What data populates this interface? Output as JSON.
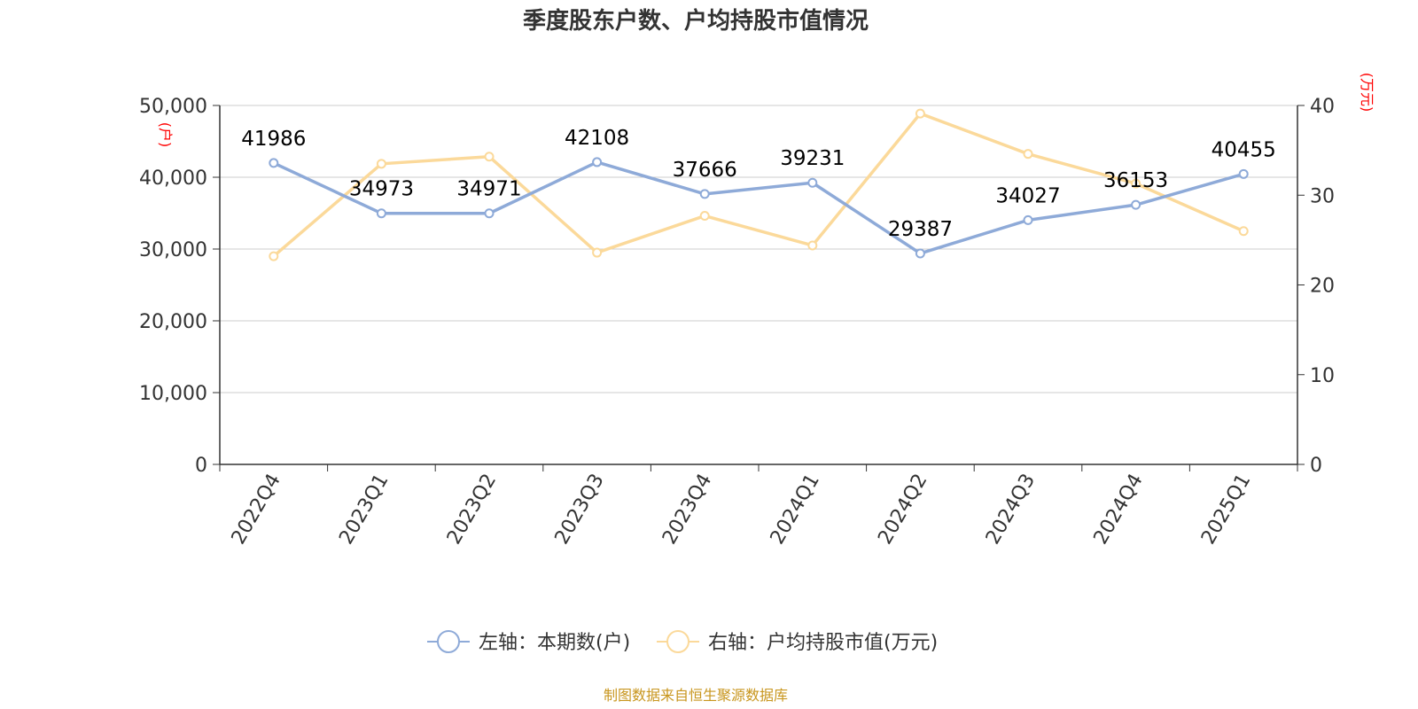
{
  "chart_data": {
    "type": "line",
    "title": "季度股东户数、户均持股市值情况",
    "categories": [
      "2022Q4",
      "2023Q1",
      "2023Q2",
      "2023Q3",
      "2023Q4",
      "2024Q1",
      "2024Q2",
      "2024Q3",
      "2024Q4",
      "2025Q1"
    ],
    "left_axis": {
      "unit": "(户)",
      "ylim": [
        0,
        50000
      ],
      "ticks": [
        "0",
        "10,000",
        "20,000",
        "30,000",
        "40,000",
        "50,000"
      ],
      "tick_values": [
        0,
        10000,
        20000,
        30000,
        40000,
        50000
      ]
    },
    "right_axis": {
      "unit": "(万元)",
      "ylim": [
        0,
        40
      ],
      "ticks": [
        "0",
        "10",
        "20",
        "30",
        "40"
      ],
      "tick_values": [
        0,
        10,
        20,
        30,
        40
      ]
    },
    "series": [
      {
        "name": "左轴：本期数(户)",
        "axis": "left",
        "color": "#8eaad8",
        "values": [
          41986,
          34973,
          34971,
          42108,
          37666,
          39231,
          29387,
          34027,
          36153,
          40455
        ],
        "labels": [
          "41986",
          "34973",
          "34971",
          "42108",
          "37666",
          "39231",
          "29387",
          "34027",
          "36153",
          "40455"
        ]
      },
      {
        "name": "右轴：户均持股市值(万元)",
        "axis": "right",
        "color": "#fbd99a",
        "values": [
          23.2,
          33.5,
          34.3,
          23.6,
          27.7,
          24.4,
          39.1,
          34.6,
          31.3,
          26.0
        ]
      }
    ],
    "grid": true,
    "legend_position": "bottom-center",
    "source": "制图数据来自恒生聚源数据库"
  }
}
